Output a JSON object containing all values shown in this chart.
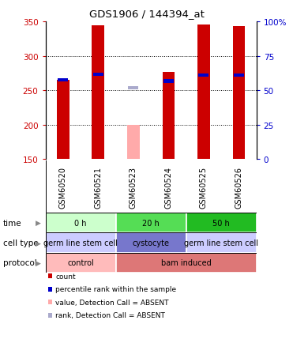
{
  "title": "GDS1906 / 144394_at",
  "samples": [
    "GSM60520",
    "GSM60521",
    "GSM60523",
    "GSM60524",
    "GSM60525",
    "GSM60526"
  ],
  "ylim_left": [
    150,
    350
  ],
  "ylim_right": [
    0,
    100
  ],
  "yticks_left": [
    150,
    200,
    250,
    300,
    350
  ],
  "yticks_right": [
    0,
    25,
    50,
    75,
    100
  ],
  "bar_values": [
    265,
    345,
    200,
    277,
    346,
    343
  ],
  "bar_colors": [
    "#cc0000",
    "#cc0000",
    "#ffaaaa",
    "#cc0000",
    "#cc0000",
    "#cc0000"
  ],
  "rank_values": [
    265,
    273,
    253,
    263,
    272,
    272
  ],
  "rank_colors": [
    "#0000cc",
    "#0000cc",
    "#aaaacc",
    "#0000cc",
    "#0000cc",
    "#0000cc"
  ],
  "time_groups": [
    {
      "label": "0 h",
      "cols": [
        0,
        1
      ],
      "color": "#ccffcc"
    },
    {
      "label": "20 h",
      "cols": [
        2,
        3
      ],
      "color": "#55dd55"
    },
    {
      "label": "50 h",
      "cols": [
        4,
        5
      ],
      "color": "#22bb22"
    }
  ],
  "celltype_groups": [
    {
      "label": "germ line stem cell",
      "cols": [
        0,
        1
      ],
      "color": "#ccccff"
    },
    {
      "label": "cystocyte",
      "cols": [
        2,
        3
      ],
      "color": "#7777cc"
    },
    {
      "label": "germ line stem cell",
      "cols": [
        4,
        5
      ],
      "color": "#ccccff"
    }
  ],
  "protocol_groups": [
    {
      "label": "control",
      "cols": [
        0,
        1
      ],
      "color": "#ffbbbb"
    },
    {
      "label": "bam induced",
      "cols": [
        2,
        3,
        4,
        5
      ],
      "color": "#dd7777"
    }
  ],
  "legend_items": [
    {
      "color": "#cc0000",
      "label": "count"
    },
    {
      "color": "#0000cc",
      "label": "percentile rank within the sample"
    },
    {
      "color": "#ffaaaa",
      "label": "value, Detection Call = ABSENT"
    },
    {
      "color": "#aaaacc",
      "label": "rank, Detection Call = ABSENT"
    }
  ],
  "grid_color": "#888888",
  "bg_color": "#ffffff",
  "sample_area_bg": "#cccccc",
  "bar_width": 0.35
}
